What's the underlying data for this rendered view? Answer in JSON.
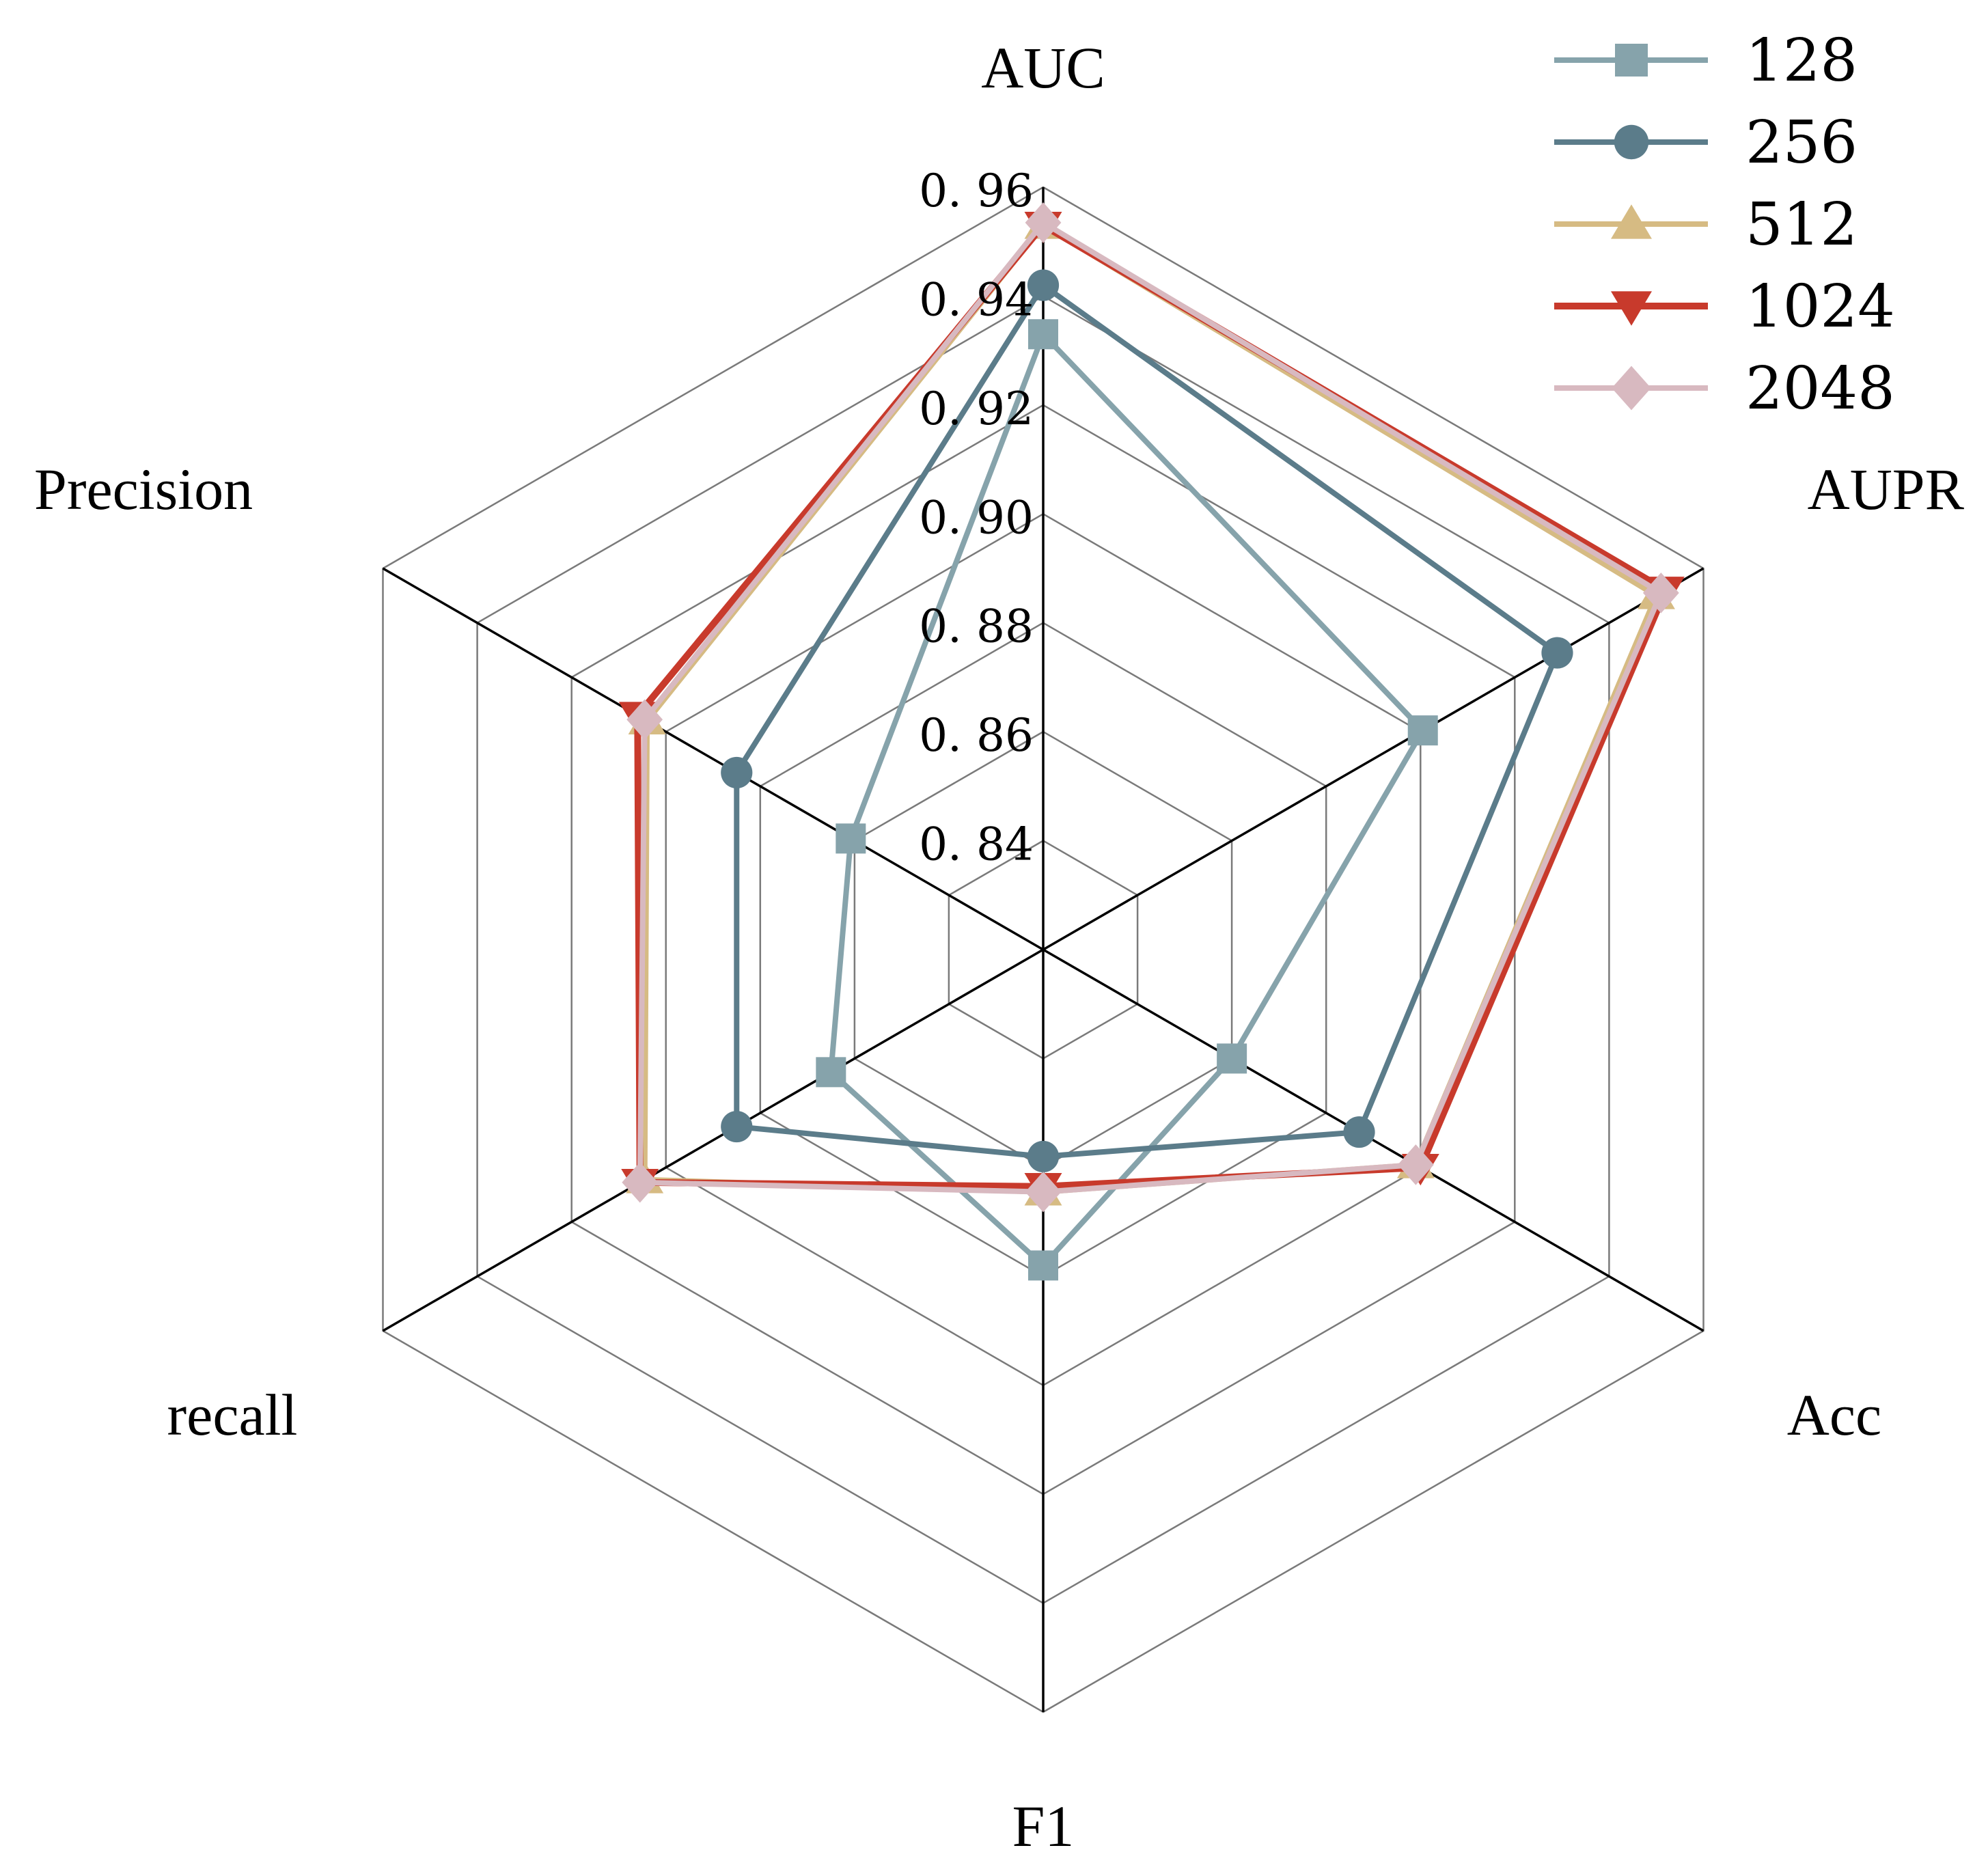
{
  "chart_data": {
    "type": "radar",
    "title": "",
    "axes": [
      "AUC",
      "AUPR",
      "Acc",
      "F1",
      "recall",
      "Precision"
    ],
    "rlim": [
      0.82,
      0.96
    ],
    "ticks": [
      "0. 84",
      "0. 86",
      "0. 88",
      "0. 90",
      "0. 92",
      "0. 94",
      "0. 96"
    ],
    "tick_values": [
      0.84,
      0.86,
      0.88,
      0.9,
      0.92,
      0.94,
      0.96
    ],
    "grid": true,
    "legend_position": "top-right",
    "series": [
      {
        "name": "128",
        "color": "#86a3ab",
        "marker": "square",
        "values": [
          0.933,
          0.9005,
          0.86,
          0.878,
          0.865,
          0.8608
        ]
      },
      {
        "name": "256",
        "color": "#5b7c8a",
        "marker": "circle",
        "values": [
          0.942,
          0.929,
          0.887,
          0.858,
          0.885,
          0.885
        ]
      },
      {
        "name": "512",
        "color": "#d6bb83",
        "marker": "triangle-up",
        "values": [
          0.953,
          0.95,
          0.899,
          0.8645,
          0.9045,
          0.904
        ]
      },
      {
        "name": "1024",
        "color": "#c83a2c",
        "marker": "triangle-down",
        "values": [
          0.953,
          0.952,
          0.9,
          0.8635,
          0.9055,
          0.906
        ]
      },
      {
        "name": "2048",
        "color": "#d8b9c0",
        "marker": "diamond",
        "values": [
          0.9535,
          0.951,
          0.899,
          0.8645,
          0.9055,
          0.9045
        ]
      }
    ]
  }
}
